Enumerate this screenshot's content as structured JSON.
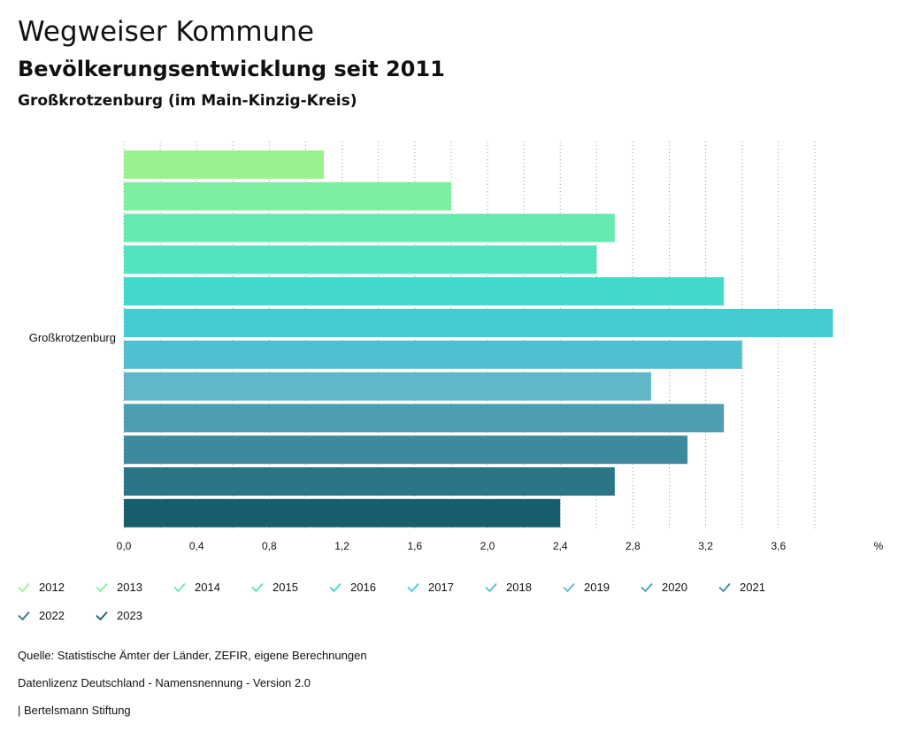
{
  "header": {
    "title": "Wegweiser Kommune",
    "subtitle": "Bevölkerungsentwicklung seit 2011",
    "region": "Großkrotzenburg (im Main-Kinzig-Kreis)"
  },
  "chart_data": {
    "type": "bar",
    "orientation": "horizontal",
    "category": "Großkrotzenburg",
    "unit": "%",
    "xlim": [
      0,
      3.9
    ],
    "ticks": [
      "0,0",
      "0,4",
      "0,8",
      "1,2",
      "1,6",
      "2,0",
      "2,4",
      "2,8",
      "3,2",
      "3,6"
    ],
    "tick_values": [
      0,
      0.4,
      0.8,
      1.2,
      1.6,
      2.0,
      2.4,
      2.8,
      3.2,
      3.6
    ],
    "series": [
      {
        "name": "2012",
        "value": 1.1,
        "color": "#9af28e"
      },
      {
        "name": "2013",
        "value": 1.8,
        "color": "#7eeea0"
      },
      {
        "name": "2014",
        "value": 2.7,
        "color": "#66eab0"
      },
      {
        "name": "2015",
        "value": 2.6,
        "color": "#52e3c0"
      },
      {
        "name": "2016",
        "value": 3.3,
        "color": "#42d8cb"
      },
      {
        "name": "2017",
        "value": 3.9,
        "color": "#43ccd2"
      },
      {
        "name": "2018",
        "value": 3.4,
        "color": "#4fc0cf"
      },
      {
        "name": "2019",
        "value": 2.9,
        "color": "#5fb7c9"
      },
      {
        "name": "2020",
        "value": 3.3,
        "color": "#4c9eb3"
      },
      {
        "name": "2021",
        "value": 3.1,
        "color": "#3d8a9f"
      },
      {
        "name": "2022",
        "value": 2.7,
        "color": "#2a7587"
      },
      {
        "name": "2023",
        "value": 2.4,
        "color": "#175e6d"
      }
    ]
  },
  "footer": {
    "source": "Quelle: Statistische Ämter der Länder, ZEFIR, eigene Berechnungen",
    "license": "Datenlizenz Deutschland - Namensnennung - Version 2.0",
    "publisher": "| Bertelsmann Stiftung"
  }
}
